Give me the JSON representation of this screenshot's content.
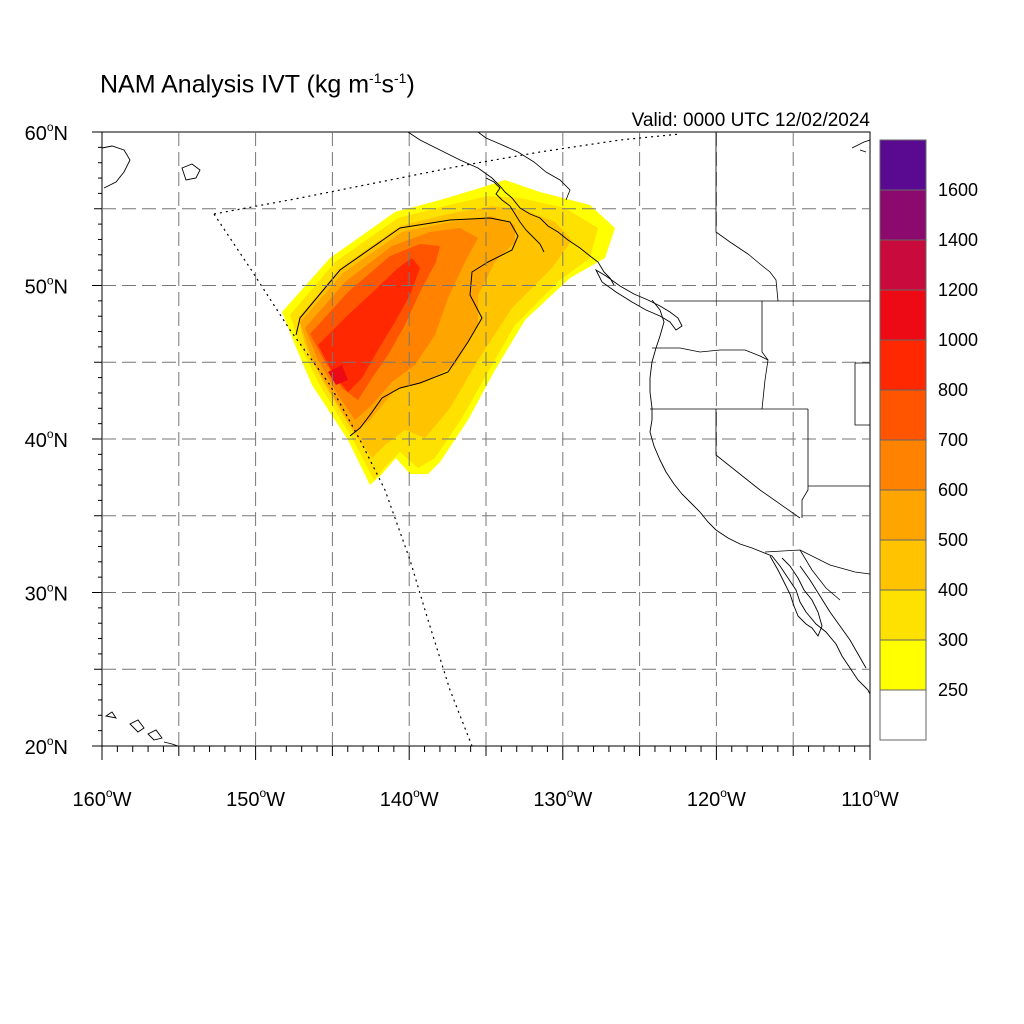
{
  "title": {
    "main": "NAM Analysis IVT (kg m",
    "exp1": "-1",
    "mid": "s",
    "exp2": "-1",
    "close": ")"
  },
  "valid": "Valid: 0000 UTC 12/02/2024",
  "map": {
    "lon_range": [
      -160,
      -110
    ],
    "lat_range": [
      20,
      60
    ],
    "lat_labels": [
      {
        "value": 60,
        "num": "60",
        "deg": "o",
        "hemi": "N"
      },
      {
        "value": 50,
        "num": "50",
        "deg": "o",
        "hemi": "N"
      },
      {
        "value": 40,
        "num": "40",
        "deg": "o",
        "hemi": "N"
      },
      {
        "value": 30,
        "num": "30",
        "deg": "o",
        "hemi": "N"
      },
      {
        "value": 20,
        "num": "20",
        "deg": "o",
        "hemi": "N"
      }
    ],
    "lon_labels": [
      {
        "value": -160,
        "num": "160",
        "deg": "o",
        "hemi": "W"
      },
      {
        "value": -150,
        "num": "150",
        "deg": "o",
        "hemi": "W"
      },
      {
        "value": -140,
        "num": "140",
        "deg": "o",
        "hemi": "W"
      },
      {
        "value": -130,
        "num": "130",
        "deg": "o",
        "hemi": "W"
      },
      {
        "value": -120,
        "num": "120",
        "deg": "o",
        "hemi": "W"
      },
      {
        "value": -110,
        "num": "110",
        "deg": "o",
        "hemi": "W"
      }
    ],
    "grid_lines": "dashed gray every 5 degrees",
    "domain_boundary": "dotted black line (NAM domain edge)"
  },
  "colorbar": {
    "levels": [
      "250",
      "300",
      "400",
      "500",
      "600",
      "700",
      "800",
      "1000",
      "1200",
      "1400",
      "1600"
    ],
    "colors": [
      "#ffffff",
      "#ffff00",
      "#ffe100",
      "#ffc300",
      "#ffa500",
      "#ff8200",
      "#ff5500",
      "#ff2800",
      "#ee0a14",
      "#c80a3c",
      "#8c0a6e",
      "#5a0a91"
    ]
  }
}
